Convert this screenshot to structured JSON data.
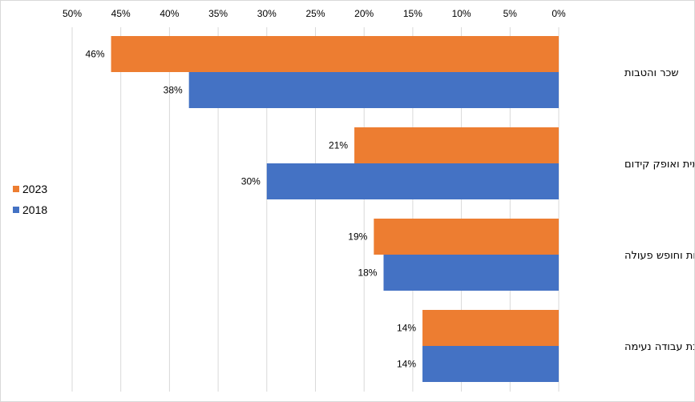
{
  "chart_data": {
    "type": "bar",
    "orientation": "horizontal",
    "reversed_value_axis": true,
    "categories": [
      "שכר והטבות",
      "הגשמה עצמית ואופק קידום",
      "גמישות וחופש פעולה",
      "סביבת עבודה נעימה"
    ],
    "series": [
      {
        "name": "2023",
        "color": "#ED7D31",
        "values": [
          46,
          21,
          19,
          14
        ],
        "labels": [
          "46%",
          "21%",
          "19%",
          "14%"
        ]
      },
      {
        "name": "2018",
        "color": "#4472C4",
        "values": [
          38,
          30,
          18,
          14
        ],
        "labels": [
          "38%",
          "30%",
          "18%",
          "14%"
        ]
      }
    ],
    "x_ticks": [
      "0%",
      "5%",
      "10%",
      "15%",
      "20%",
      "25%",
      "30%",
      "35%",
      "40%",
      "45%",
      "50%"
    ],
    "xlim": [
      0,
      50
    ],
    "grid": true,
    "legend_position": "left"
  }
}
